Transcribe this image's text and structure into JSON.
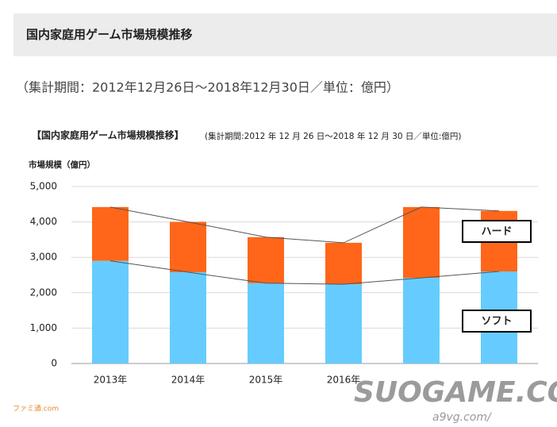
{
  "header": {
    "title": "国内家庭用ゲーム市場規模推移",
    "subtitle": "（集計期間：2012年12月26日～2018年12月30日／単位：億円）"
  },
  "chart_data": {
    "type": "stacked-bar",
    "title": "【国内家庭用ゲーム市場規模推移】",
    "subtitle": "(集計期間:2012 年 12 月 26 日～2018 年 12 月 30 日／単位:億円)",
    "y_label": "市場規模（億円）",
    "categories": [
      "2013年",
      "2014年",
      "2015年",
      "2016年",
      null,
      null
    ],
    "series": [
      {
        "name": "ソフト",
        "color": "#66ccff",
        "values": [
          2900,
          2580,
          2270,
          2240,
          2420,
          2600
        ]
      },
      {
        "name": "ハード",
        "color": "#ff6619",
        "values": [
          1520,
          1420,
          1300,
          1170,
          2000,
          1710
        ]
      }
    ],
    "ylim": [
      0,
      5000
    ],
    "yticks": [
      0,
      {
        "value": 1000,
        "label": "1,000"
      },
      {
        "value": 2000,
        "label": "2,000"
      },
      {
        "value": 3000,
        "label": "3,000"
      },
      {
        "value": 4000,
        "label": "4,000"
      },
      {
        "value": 5000,
        "label": "5,000"
      }
    ],
    "grid": true
  },
  "watermarks": [
    "SUOGAME.COM",
    "a9vg.com/",
    "ファミ通.com"
  ]
}
